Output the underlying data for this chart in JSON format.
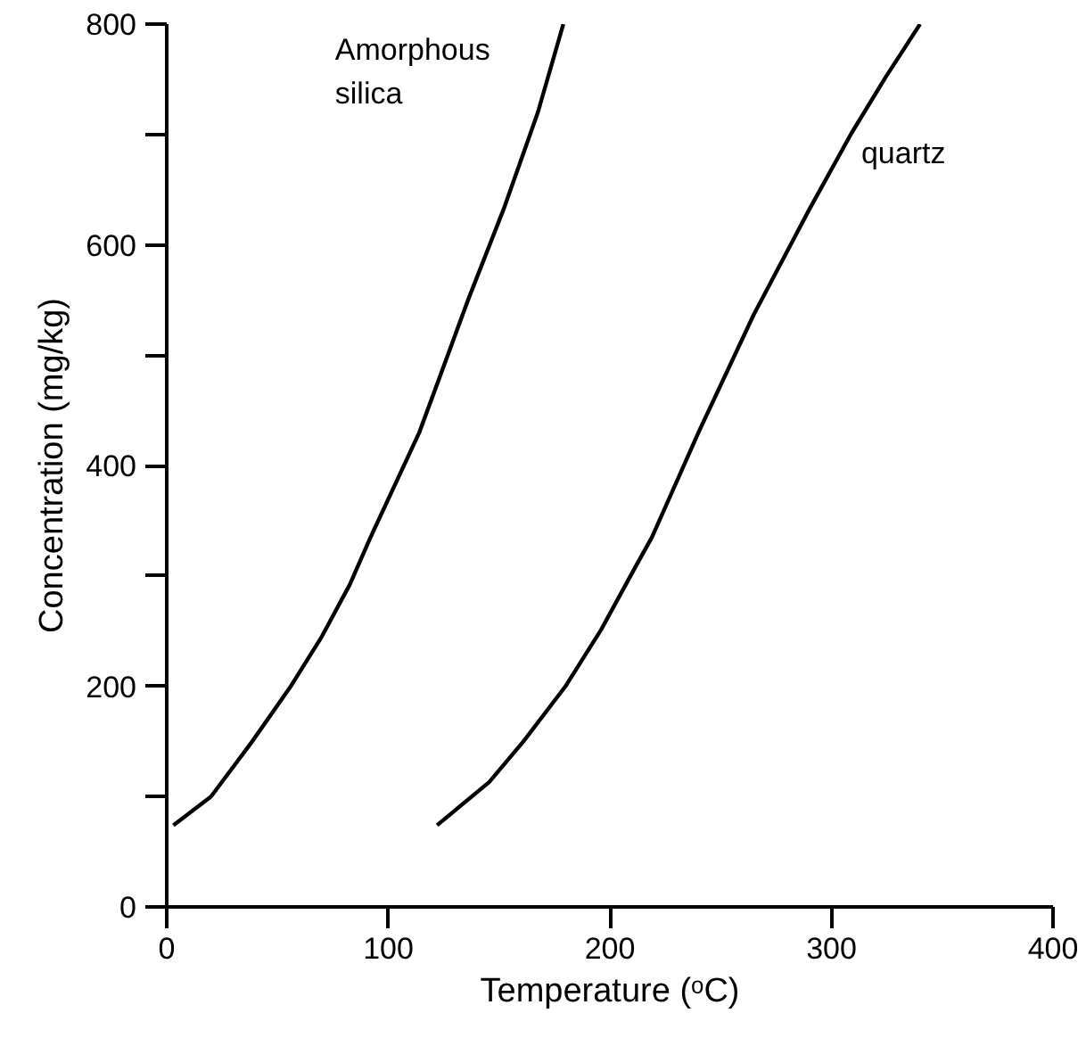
{
  "chart_data": {
    "type": "line",
    "xlabel": "Temperature (ᵒC)",
    "ylabel": "Concentration (mg/kg)",
    "xlim": [
      0,
      400
    ],
    "ylim": [
      0,
      800
    ],
    "xticks": [
      0,
      100,
      200,
      300,
      400
    ],
    "yticks": [
      0,
      {
        "value": 100,
        "label": null
      },
      200,
      {
        "value": 300,
        "label": null
      },
      400,
      {
        "value": 500,
        "label": null
      },
      600,
      {
        "value": 700,
        "label": null
      },
      800
    ],
    "grid": false,
    "marker": "none",
    "line_style": "solid",
    "series": [
      {
        "name": "Amorphous silica",
        "color": "#000000",
        "x": [
          3,
          20,
          38.6,
          56,
          70,
          82.6,
          92,
          114,
          136,
          152,
          167.5,
          179
        ],
        "values": [
          74,
          100,
          150,
          200,
          245,
          292,
          335,
          430,
          550,
          632,
          720,
          800
        ]
      },
      {
        "name": "quartz",
        "color": "#000000",
        "x": [
          122,
          145.5,
          161,
          180,
          196,
          211.5,
          219,
          240,
          265,
          290,
          309,
          324.5,
          340
        ],
        "values": [
          74,
          113,
          150,
          200,
          251,
          308,
          335,
          430,
          537,
          632,
          701,
          752,
          800
        ]
      }
    ]
  }
}
